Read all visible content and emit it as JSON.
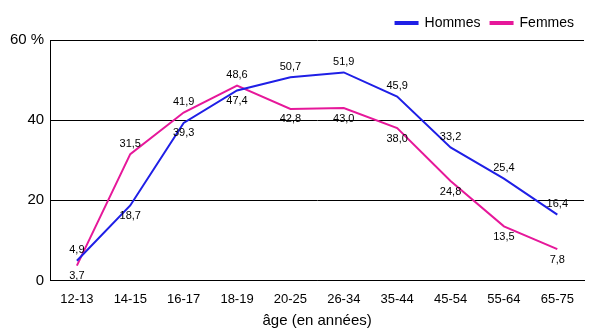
{
  "chart_data": {
    "type": "line",
    "x_label": "âge (en années)",
    "categories": [
      "12-13",
      "14-15",
      "16-17",
      "18-19",
      "20-25",
      "26-34",
      "35-44",
      "45-54",
      "55-64",
      "65-75"
    ],
    "series": [
      {
        "name": "Hommes",
        "color": "#1f1fe6",
        "marker": "none",
        "line_style": "solid",
        "values": [
          4.9,
          18.7,
          39.3,
          47.4,
          50.7,
          51.9,
          45.9,
          33.2,
          25.4,
          16.4
        ],
        "value_labels": [
          "4,9",
          "18,7",
          "39,3",
          "47,4",
          "50,7",
          "51,9",
          "45,9",
          "33,2",
          "25,4",
          "16,4"
        ]
      },
      {
        "name": "Femmes",
        "color": "#e6189a",
        "marker": "none",
        "line_style": "solid",
        "values": [
          3.7,
          31.5,
          41.9,
          48.6,
          42.8,
          43.0,
          38.0,
          24.8,
          13.5,
          7.8
        ],
        "value_labels": [
          "3,7",
          "31,5",
          "41,9",
          "48,6",
          "42,8",
          "43,0",
          "38,0",
          "24,8",
          "13,5",
          "7,8"
        ]
      }
    ],
    "ylim": [
      0,
      60
    ],
    "yticks": [
      0,
      20,
      40,
      {
        "value": 60,
        "label": "60 %"
      }
    ],
    "grid": true,
    "legend": "upper right",
    "data_labels": true
  }
}
